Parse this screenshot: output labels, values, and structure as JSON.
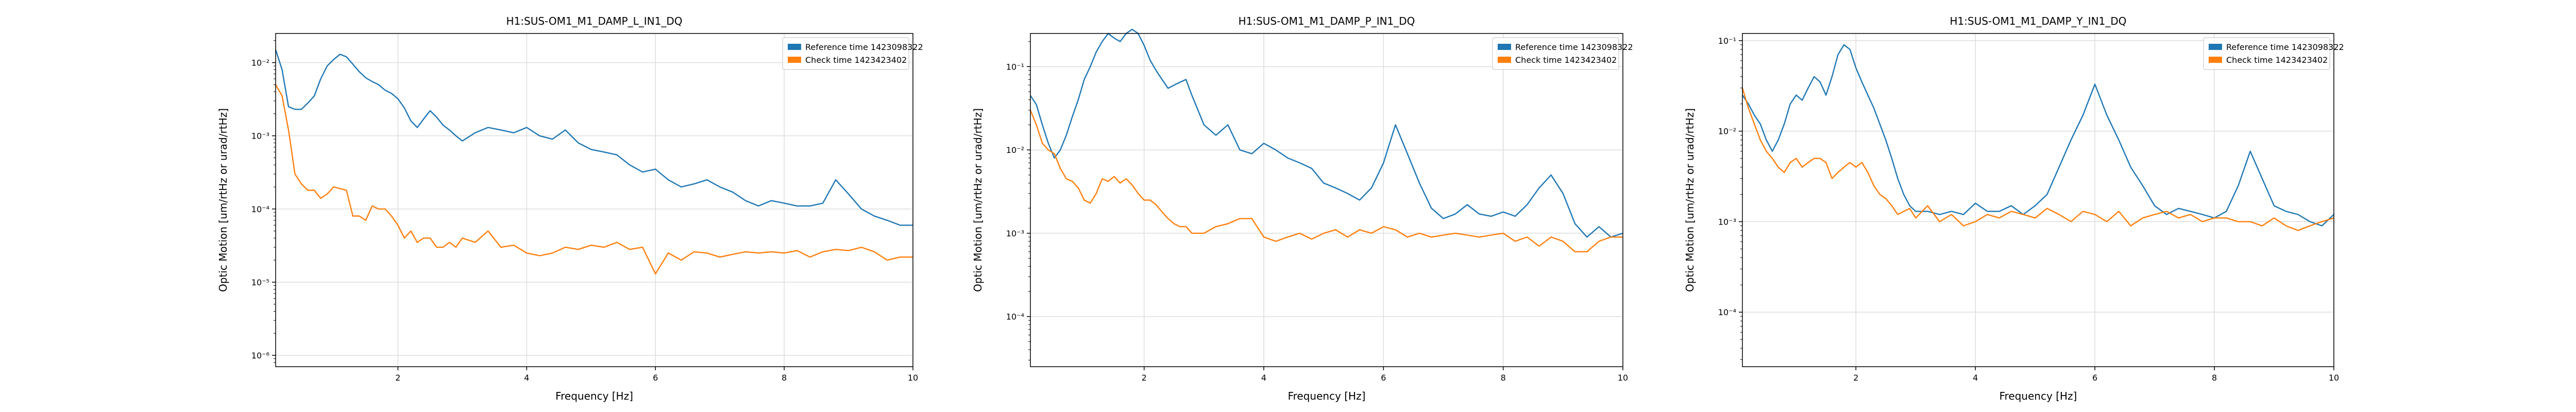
{
  "chart_data": [
    {
      "type": "line",
      "title": "H1:SUS-OM1_M1_DAMP_L_IN1_DQ",
      "xlabel": "Frequency [Hz]",
      "ylabel": "Optic Motion [um/rtHz or urad/rtHz]",
      "xlim": [
        0.1,
        10
      ],
      "ylim": [
        7e-07,
        0.025
      ],
      "yscale": "log",
      "xticks": [
        2,
        4,
        6,
        8,
        10
      ],
      "yticks": [
        {
          "value": 1e-06,
          "label": "10⁻⁶"
        },
        {
          "value": 1e-05,
          "label": "10⁻⁵"
        },
        {
          "value": 0.0001,
          "label": "10⁻⁴"
        },
        {
          "value": 0.001,
          "label": "10⁻³"
        },
        {
          "value": 0.01,
          "label": "10⁻²"
        }
      ],
      "grid": true,
      "legend": "top-right",
      "series": [
        {
          "name": "Reference time 1423098322",
          "color": "#1f77b4",
          "x": [
            0.1,
            0.2,
            0.3,
            0.4,
            0.5,
            0.6,
            0.7,
            0.8,
            0.9,
            1.0,
            1.1,
            1.2,
            1.3,
            1.4,
            1.5,
            1.6,
            1.7,
            1.8,
            1.9,
            2.0,
            2.1,
            2.2,
            2.3,
            2.4,
            2.5,
            2.6,
            2.7,
            2.8,
            2.9,
            3.0,
            3.2,
            3.4,
            3.6,
            3.8,
            4.0,
            4.2,
            4.4,
            4.6,
            4.8,
            5.0,
            5.2,
            5.4,
            5.6,
            5.8,
            6.0,
            6.2,
            6.4,
            6.6,
            6.8,
            7.0,
            7.2,
            7.4,
            7.6,
            7.8,
            8.0,
            8.2,
            8.4,
            8.6,
            8.8,
            9.0,
            9.2,
            9.4,
            9.6,
            9.8,
            10.0
          ],
          "values": [
            0.015,
            0.008,
            0.0025,
            0.0023,
            0.0023,
            0.0028,
            0.0035,
            0.006,
            0.009,
            0.011,
            0.013,
            0.012,
            0.0095,
            0.0075,
            0.0062,
            0.0055,
            0.005,
            0.0042,
            0.0038,
            0.0032,
            0.0024,
            0.0016,
            0.0013,
            0.0017,
            0.0022,
            0.0018,
            0.0014,
            0.0012,
            0.001,
            0.00085,
            0.0011,
            0.0013,
            0.0012,
            0.0011,
            0.0013,
            0.001,
            0.0009,
            0.0012,
            0.0008,
            0.00065,
            0.0006,
            0.00055,
            0.0004,
            0.00032,
            0.00035,
            0.00025,
            0.0002,
            0.00022,
            0.00025,
            0.0002,
            0.00017,
            0.00013,
            0.00011,
            0.00013,
            0.00012,
            0.00011,
            0.00011,
            0.00012,
            0.00025,
            0.00016,
            0.0001,
            8e-05,
            7e-05,
            6e-05,
            6e-05
          ]
        },
        {
          "name": "Check time 1423423402",
          "color": "#ff7f0e",
          "x": [
            0.1,
            0.2,
            0.3,
            0.4,
            0.5,
            0.6,
            0.7,
            0.8,
            0.9,
            1.0,
            1.1,
            1.2,
            1.3,
            1.4,
            1.5,
            1.6,
            1.7,
            1.8,
            1.9,
            2.0,
            2.1,
            2.2,
            2.3,
            2.4,
            2.5,
            2.6,
            2.7,
            2.8,
            2.9,
            3.0,
            3.2,
            3.4,
            3.6,
            3.8,
            4.0,
            4.2,
            4.4,
            4.6,
            4.8,
            5.0,
            5.2,
            5.4,
            5.6,
            5.8,
            6.0,
            6.2,
            6.4,
            6.6,
            6.8,
            7.0,
            7.2,
            7.4,
            7.6,
            7.8,
            8.0,
            8.2,
            8.4,
            8.6,
            8.8,
            9.0,
            9.2,
            9.4,
            9.6,
            9.8,
            10.0
          ],
          "values": [
            0.005,
            0.0035,
            0.0012,
            0.0003,
            0.00022,
            0.00018,
            0.00018,
            0.00014,
            0.00016,
            0.0002,
            0.00019,
            0.00018,
            8e-05,
            8e-05,
            7e-05,
            0.00011,
            0.0001,
            0.0001,
            8e-05,
            6e-05,
            4e-05,
            5e-05,
            3.5e-05,
            4e-05,
            4e-05,
            3e-05,
            3e-05,
            3.5e-05,
            3e-05,
            4e-05,
            3.5e-05,
            5e-05,
            3e-05,
            3.2e-05,
            2.5e-05,
            2.3e-05,
            2.5e-05,
            3e-05,
            2.8e-05,
            3.2e-05,
            3e-05,
            3.5e-05,
            2.8e-05,
            3e-05,
            1.3e-05,
            2.5e-05,
            2e-05,
            2.6e-05,
            2.5e-05,
            2.2e-05,
            2.4e-05,
            2.6e-05,
            2.5e-05,
            2.6e-05,
            2.5e-05,
            2.7e-05,
            2.2e-05,
            2.6e-05,
            2.8e-05,
            2.7e-05,
            3e-05,
            2.6e-05,
            2e-05,
            2.2e-05,
            2.2e-05
          ]
        }
      ]
    },
    {
      "type": "line",
      "title": "H1:SUS-OM1_M1_DAMP_P_IN1_DQ",
      "xlabel": "Frequency [Hz]",
      "ylabel": "Optic Motion [um/rtHz or urad/rtHz]",
      "xlim": [
        0.1,
        10
      ],
      "ylim": [
        2.5e-05,
        0.25
      ],
      "yscale": "log",
      "xticks": [
        2,
        4,
        6,
        8,
        10
      ],
      "yticks": [
        {
          "value": 0.0001,
          "label": "10⁻⁴"
        },
        {
          "value": 0.001,
          "label": "10⁻³"
        },
        {
          "value": 0.01,
          "label": "10⁻²"
        },
        {
          "value": 0.1,
          "label": "10⁻¹"
        }
      ],
      "grid": true,
      "legend": "top-right",
      "series": [
        {
          "name": "Reference time 1423098322",
          "color": "#1f77b4",
          "x": [
            0.1,
            0.2,
            0.3,
            0.4,
            0.5,
            0.6,
            0.7,
            0.8,
            0.9,
            1.0,
            1.1,
            1.2,
            1.3,
            1.4,
            1.5,
            1.6,
            1.7,
            1.8,
            1.9,
            2.0,
            2.1,
            2.2,
            2.3,
            2.4,
            2.5,
            2.6,
            2.7,
            2.8,
            2.9,
            3.0,
            3.2,
            3.4,
            3.6,
            3.8,
            4.0,
            4.2,
            4.4,
            4.6,
            4.8,
            5.0,
            5.2,
            5.4,
            5.6,
            5.8,
            6.0,
            6.2,
            6.4,
            6.6,
            6.8,
            7.0,
            7.2,
            7.4,
            7.6,
            7.8,
            8.0,
            8.2,
            8.4,
            8.6,
            8.8,
            9.0,
            9.2,
            9.4,
            9.6,
            9.8,
            10.0
          ],
          "values": [
            0.045,
            0.035,
            0.02,
            0.012,
            0.008,
            0.01,
            0.015,
            0.025,
            0.04,
            0.07,
            0.1,
            0.15,
            0.2,
            0.25,
            0.22,
            0.2,
            0.25,
            0.28,
            0.25,
            0.18,
            0.12,
            0.09,
            0.07,
            0.055,
            0.06,
            0.065,
            0.07,
            0.045,
            0.03,
            0.02,
            0.015,
            0.02,
            0.01,
            0.009,
            0.012,
            0.01,
            0.008,
            0.007,
            0.006,
            0.004,
            0.0035,
            0.003,
            0.0025,
            0.0035,
            0.007,
            0.02,
            0.009,
            0.004,
            0.002,
            0.0015,
            0.0017,
            0.0022,
            0.0017,
            0.0016,
            0.0018,
            0.0016,
            0.0022,
            0.0035,
            0.005,
            0.003,
            0.0013,
            0.0009,
            0.0012,
            0.0009,
            0.001
          ]
        },
        {
          "name": "Check time 1423423402",
          "color": "#ff7f0e",
          "x": [
            0.1,
            0.2,
            0.3,
            0.4,
            0.5,
            0.6,
            0.7,
            0.8,
            0.9,
            1.0,
            1.1,
            1.2,
            1.3,
            1.4,
            1.5,
            1.6,
            1.7,
            1.8,
            1.9,
            2.0,
            2.1,
            2.2,
            2.3,
            2.4,
            2.5,
            2.6,
            2.7,
            2.8,
            2.9,
            3.0,
            3.2,
            3.4,
            3.6,
            3.8,
            4.0,
            4.2,
            4.4,
            4.6,
            4.8,
            5.0,
            5.2,
            5.4,
            5.6,
            5.8,
            6.0,
            6.2,
            6.4,
            6.6,
            6.8,
            7.0,
            7.2,
            7.4,
            7.6,
            7.8,
            8.0,
            8.2,
            8.4,
            8.6,
            8.8,
            9.0,
            9.2,
            9.4,
            9.6,
            9.8,
            10.0
          ],
          "values": [
            0.03,
            0.02,
            0.012,
            0.01,
            0.009,
            0.006,
            0.0045,
            0.0042,
            0.0035,
            0.0025,
            0.0023,
            0.003,
            0.0045,
            0.0042,
            0.0048,
            0.004,
            0.0045,
            0.0038,
            0.003,
            0.0025,
            0.0025,
            0.0022,
            0.0018,
            0.0015,
            0.0013,
            0.0012,
            0.0012,
            0.001,
            0.001,
            0.001,
            0.0012,
            0.0013,
            0.0015,
            0.0015,
            0.0009,
            0.0008,
            0.0009,
            0.001,
            0.00085,
            0.001,
            0.0011,
            0.0009,
            0.0011,
            0.001,
            0.0012,
            0.0011,
            0.0009,
            0.001,
            0.0009,
            0.00095,
            0.001,
            0.00095,
            0.0009,
            0.00095,
            0.001,
            0.0008,
            0.0009,
            0.0007,
            0.0009,
            0.0008,
            0.0006,
            0.0006,
            0.0008,
            0.0009,
            0.0009
          ]
        }
      ]
    },
    {
      "type": "line",
      "title": "H1:SUS-OM1_M1_DAMP_Y_IN1_DQ",
      "xlabel": "Frequency [Hz]",
      "ylabel": "Optic Motion [um/rtHz or urad/rtHz]",
      "xlim": [
        0.1,
        10
      ],
      "ylim": [
        2.5e-05,
        0.12
      ],
      "yscale": "log",
      "xticks": [
        2,
        4,
        6,
        8,
        10
      ],
      "yticks": [
        {
          "value": 0.0001,
          "label": "10⁻⁴"
        },
        {
          "value": 0.001,
          "label": "10⁻³"
        },
        {
          "value": 0.01,
          "label": "10⁻²"
        },
        {
          "value": 0.1,
          "label": "10⁻¹"
        }
      ],
      "grid": true,
      "legend": "top-right",
      "series": [
        {
          "name": "Reference time 1423098322",
          "color": "#1f77b4",
          "x": [
            0.1,
            0.2,
            0.3,
            0.4,
            0.5,
            0.6,
            0.7,
            0.8,
            0.9,
            1.0,
            1.1,
            1.2,
            1.3,
            1.4,
            1.5,
            1.6,
            1.7,
            1.8,
            1.9,
            2.0,
            2.1,
            2.2,
            2.3,
            2.4,
            2.5,
            2.6,
            2.7,
            2.8,
            2.9,
            3.0,
            3.2,
            3.4,
            3.6,
            3.8,
            4.0,
            4.2,
            4.4,
            4.6,
            4.8,
            5.0,
            5.2,
            5.4,
            5.6,
            5.8,
            6.0,
            6.2,
            6.4,
            6.6,
            6.8,
            7.0,
            7.2,
            7.4,
            7.6,
            7.8,
            8.0,
            8.2,
            8.4,
            8.6,
            8.8,
            9.0,
            9.2,
            9.4,
            9.6,
            9.8,
            10.0
          ],
          "values": [
            0.025,
            0.02,
            0.015,
            0.012,
            0.008,
            0.006,
            0.008,
            0.012,
            0.02,
            0.025,
            0.022,
            0.03,
            0.04,
            0.035,
            0.025,
            0.04,
            0.07,
            0.09,
            0.08,
            0.05,
            0.035,
            0.025,
            0.018,
            0.012,
            0.008,
            0.005,
            0.003,
            0.002,
            0.0015,
            0.0013,
            0.0013,
            0.0012,
            0.0013,
            0.0012,
            0.0016,
            0.0013,
            0.0013,
            0.0015,
            0.0012,
            0.0015,
            0.002,
            0.004,
            0.008,
            0.015,
            0.033,
            0.015,
            0.008,
            0.004,
            0.0025,
            0.0015,
            0.0012,
            0.0014,
            0.0013,
            0.0012,
            0.0011,
            0.0013,
            0.0025,
            0.006,
            0.003,
            0.0015,
            0.0013,
            0.0012,
            0.001,
            0.0009,
            0.0012
          ]
        },
        {
          "name": "Check time 1423423402",
          "color": "#ff7f0e",
          "x": [
            0.1,
            0.2,
            0.3,
            0.4,
            0.5,
            0.6,
            0.7,
            0.8,
            0.9,
            1.0,
            1.1,
            1.2,
            1.3,
            1.4,
            1.5,
            1.6,
            1.7,
            1.8,
            1.9,
            2.0,
            2.1,
            2.2,
            2.3,
            2.4,
            2.5,
            2.6,
            2.7,
            2.8,
            2.9,
            3.0,
            3.2,
            3.4,
            3.6,
            3.8,
            4.0,
            4.2,
            4.4,
            4.6,
            4.8,
            5.0,
            5.2,
            5.4,
            5.6,
            5.8,
            6.0,
            6.2,
            6.4,
            6.6,
            6.8,
            7.0,
            7.2,
            7.4,
            7.6,
            7.8,
            8.0,
            8.2,
            8.4,
            8.6,
            8.8,
            9.0,
            9.2,
            9.4,
            9.6,
            9.8,
            10.0
          ],
          "values": [
            0.03,
            0.018,
            0.012,
            0.008,
            0.006,
            0.005,
            0.004,
            0.0035,
            0.0045,
            0.005,
            0.004,
            0.0045,
            0.005,
            0.005,
            0.0045,
            0.003,
            0.0035,
            0.004,
            0.0045,
            0.004,
            0.0045,
            0.0035,
            0.0025,
            0.002,
            0.0018,
            0.0015,
            0.0012,
            0.0013,
            0.0014,
            0.0011,
            0.0015,
            0.001,
            0.0012,
            0.0009,
            0.001,
            0.0012,
            0.0011,
            0.0013,
            0.0012,
            0.0011,
            0.0014,
            0.0012,
            0.001,
            0.0013,
            0.0012,
            0.001,
            0.0013,
            0.0009,
            0.0011,
            0.0012,
            0.0013,
            0.0011,
            0.0012,
            0.001,
            0.0011,
            0.0011,
            0.001,
            0.001,
            0.0009,
            0.0011,
            0.0009,
            0.0008,
            0.0009,
            0.001,
            0.0011
          ]
        }
      ]
    }
  ]
}
